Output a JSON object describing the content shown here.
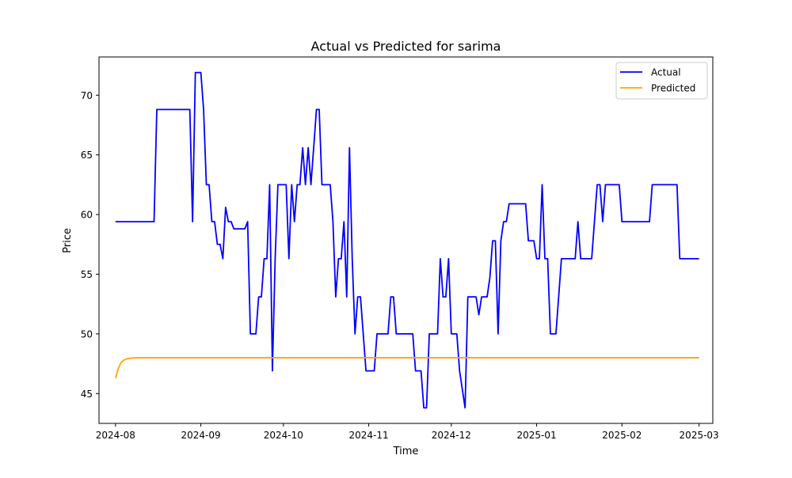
{
  "chart_data": {
    "type": "line",
    "title": "Actual vs Predicted for sarima",
    "xlabel": "Time",
    "ylabel": "Price",
    "xlim": [
      "2024-07-26",
      "2025-03-06"
    ],
    "ylim": [
      42.5,
      73.2
    ],
    "x_ticks": [
      "2024-08",
      "2024-09",
      "2024-10",
      "2024-11",
      "2024-12",
      "2025-01",
      "2025-02",
      "2025-03"
    ],
    "y_ticks": [
      45,
      50,
      55,
      60,
      65,
      70
    ],
    "legend_position": "top-right",
    "grid": false,
    "series": [
      {
        "name": "Actual",
        "color": "#0000ff",
        "points": [
          [
            "2024-08-01",
            59.4
          ],
          [
            "2024-08-15",
            59.4
          ],
          [
            "2024-08-16",
            68.8
          ],
          [
            "2024-08-28",
            68.8
          ],
          [
            "2024-08-29",
            59.4
          ],
          [
            "2024-08-30",
            71.9
          ],
          [
            "2024-09-01",
            71.9
          ],
          [
            "2024-09-02",
            68.8
          ],
          [
            "2024-09-03",
            62.5
          ],
          [
            "2024-09-04",
            62.5
          ],
          [
            "2024-09-05",
            59.4
          ],
          [
            "2024-09-06",
            59.4
          ],
          [
            "2024-09-07",
            57.5
          ],
          [
            "2024-09-08",
            57.5
          ],
          [
            "2024-09-09",
            56.3
          ],
          [
            "2024-09-10",
            60.6
          ],
          [
            "2024-09-11",
            59.4
          ],
          [
            "2024-09-12",
            59.4
          ],
          [
            "2024-09-13",
            58.8
          ],
          [
            "2024-09-17",
            58.8
          ],
          [
            "2024-09-18",
            59.4
          ],
          [
            "2024-09-19",
            50.0
          ],
          [
            "2024-09-21",
            50.0
          ],
          [
            "2024-09-22",
            53.1
          ],
          [
            "2024-09-23",
            53.1
          ],
          [
            "2024-09-24",
            56.3
          ],
          [
            "2024-09-25",
            56.3
          ],
          [
            "2024-09-26",
            62.5
          ],
          [
            "2024-09-27",
            46.9
          ],
          [
            "2024-09-28",
            56.3
          ],
          [
            "2024-09-29",
            62.5
          ],
          [
            "2024-10-02",
            62.5
          ],
          [
            "2024-10-03",
            56.3
          ],
          [
            "2024-10-04",
            62.5
          ],
          [
            "2024-10-05",
            59.4
          ],
          [
            "2024-10-06",
            62.5
          ],
          [
            "2024-10-07",
            62.5
          ],
          [
            "2024-10-08",
            65.6
          ],
          [
            "2024-10-09",
            62.5
          ],
          [
            "2024-10-10",
            65.6
          ],
          [
            "2024-10-11",
            62.5
          ],
          [
            "2024-10-12",
            65.6
          ],
          [
            "2024-10-13",
            68.8
          ],
          [
            "2024-10-14",
            68.8
          ],
          [
            "2024-10-15",
            62.5
          ],
          [
            "2024-10-18",
            62.5
          ],
          [
            "2024-10-19",
            59.4
          ],
          [
            "2024-10-20",
            53.1
          ],
          [
            "2024-10-21",
            56.3
          ],
          [
            "2024-10-22",
            56.3
          ],
          [
            "2024-10-23",
            59.4
          ],
          [
            "2024-10-24",
            53.1
          ],
          [
            "2024-10-25",
            65.6
          ],
          [
            "2024-10-26",
            56.3
          ],
          [
            "2024-10-27",
            50.0
          ],
          [
            "2024-10-28",
            53.1
          ],
          [
            "2024-10-29",
            53.1
          ],
          [
            "2024-10-30",
            50.0
          ],
          [
            "2024-10-31",
            46.9
          ],
          [
            "2024-11-03",
            46.9
          ],
          [
            "2024-11-04",
            50.0
          ],
          [
            "2024-11-08",
            50.0
          ],
          [
            "2024-11-09",
            53.1
          ],
          [
            "2024-11-10",
            53.1
          ],
          [
            "2024-11-11",
            50.0
          ],
          [
            "2024-11-17",
            50.0
          ],
          [
            "2024-11-18",
            46.9
          ],
          [
            "2024-11-20",
            46.9
          ],
          [
            "2024-11-21",
            43.8
          ],
          [
            "2024-11-22",
            43.8
          ],
          [
            "2024-11-23",
            50.0
          ],
          [
            "2024-11-26",
            50.0
          ],
          [
            "2024-11-27",
            56.3
          ],
          [
            "2024-11-28",
            53.1
          ],
          [
            "2024-11-29",
            53.1
          ],
          [
            "2024-11-30",
            56.3
          ],
          [
            "2024-12-01",
            50.0
          ],
          [
            "2024-12-03",
            50.0
          ],
          [
            "2024-12-04",
            46.9
          ],
          [
            "2024-12-06",
            43.8
          ],
          [
            "2024-12-07",
            53.1
          ],
          [
            "2024-12-10",
            53.1
          ],
          [
            "2024-12-11",
            51.6
          ],
          [
            "2024-12-12",
            53.1
          ],
          [
            "2024-12-14",
            53.1
          ],
          [
            "2024-12-15",
            54.7
          ],
          [
            "2024-12-16",
            57.8
          ],
          [
            "2024-12-17",
            57.8
          ],
          [
            "2024-12-18",
            50.0
          ],
          [
            "2024-12-19",
            57.8
          ],
          [
            "2024-12-20",
            59.4
          ],
          [
            "2024-12-21",
            59.4
          ],
          [
            "2024-12-22",
            60.9
          ],
          [
            "2024-12-28",
            60.9
          ],
          [
            "2024-12-29",
            57.8
          ],
          [
            "2024-12-31",
            57.8
          ],
          [
            "2025-01-01",
            56.3
          ],
          [
            "2025-01-02",
            56.3
          ],
          [
            "2025-01-03",
            62.5
          ],
          [
            "2025-01-04",
            56.3
          ],
          [
            "2025-01-05",
            56.3
          ],
          [
            "2025-01-06",
            50.0
          ],
          [
            "2025-01-08",
            50.0
          ],
          [
            "2025-01-09",
            53.1
          ],
          [
            "2025-01-10",
            56.3
          ],
          [
            "2025-01-15",
            56.3
          ],
          [
            "2025-01-16",
            59.4
          ],
          [
            "2025-01-17",
            56.3
          ],
          [
            "2025-01-21",
            56.3
          ],
          [
            "2025-01-22",
            59.4
          ],
          [
            "2025-01-23",
            62.5
          ],
          [
            "2025-01-24",
            62.5
          ],
          [
            "2025-01-25",
            59.4
          ],
          [
            "2025-01-26",
            62.5
          ],
          [
            "2025-01-31",
            62.5
          ],
          [
            "2025-02-01",
            59.4
          ],
          [
            "2025-02-11",
            59.4
          ],
          [
            "2025-02-12",
            62.5
          ],
          [
            "2025-02-21",
            62.5
          ],
          [
            "2025-02-22",
            56.3
          ],
          [
            "2025-03-01",
            56.3
          ]
        ]
      },
      {
        "name": "Predicted",
        "color": "#ffa500",
        "points": [
          [
            "2024-08-01",
            46.3
          ],
          [
            "2024-08-02",
            47.1
          ],
          [
            "2024-08-03",
            47.6
          ],
          [
            "2024-08-04",
            47.8
          ],
          [
            "2024-08-05",
            47.9
          ],
          [
            "2024-08-06",
            47.95
          ],
          [
            "2024-08-08",
            48.0
          ],
          [
            "2025-03-01",
            48.0
          ]
        ]
      }
    ]
  }
}
